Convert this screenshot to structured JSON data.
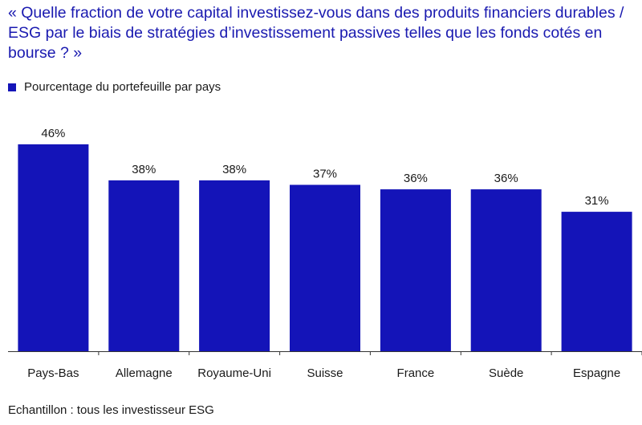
{
  "colors": {
    "bar": "#1414b8",
    "title": "#1a1ab0",
    "axis": "#333333",
    "text": "#1a1a1a"
  },
  "title": "« Quelle fraction de votre capital investissez-vous dans des produits financiers durables / ESG par le biais de stratégies d’investissement passives telles que les fonds cotés en bourse ? »",
  "legend_label": "Pourcentage du portefeuille par pays",
  "footnote": "Echantillon : tous les investisseur ESG",
  "chart_data": {
    "type": "bar",
    "title": "« Quelle fraction de votre capital investissez-vous dans des produits financiers durables / ESG par le biais de stratégies d’investissement passives telles que les fonds cotés en bourse ? »",
    "categories": [
      "Pays-Bas",
      "Allemagne",
      "Royaume-Uni",
      "Suisse",
      "France",
      "Suède",
      "Espagne"
    ],
    "series": [
      {
        "name": "Pourcentage du portefeuille par pays",
        "values": [
          46,
          38,
          38,
          37,
          36,
          36,
          31
        ]
      }
    ],
    "data_labels": [
      "46%",
      "38%",
      "38%",
      "37%",
      "36%",
      "36%",
      "31%"
    ],
    "ylim": [
      0,
      46
    ],
    "xlabel": "",
    "ylabel": "",
    "grid": false,
    "legend": "top-left"
  }
}
